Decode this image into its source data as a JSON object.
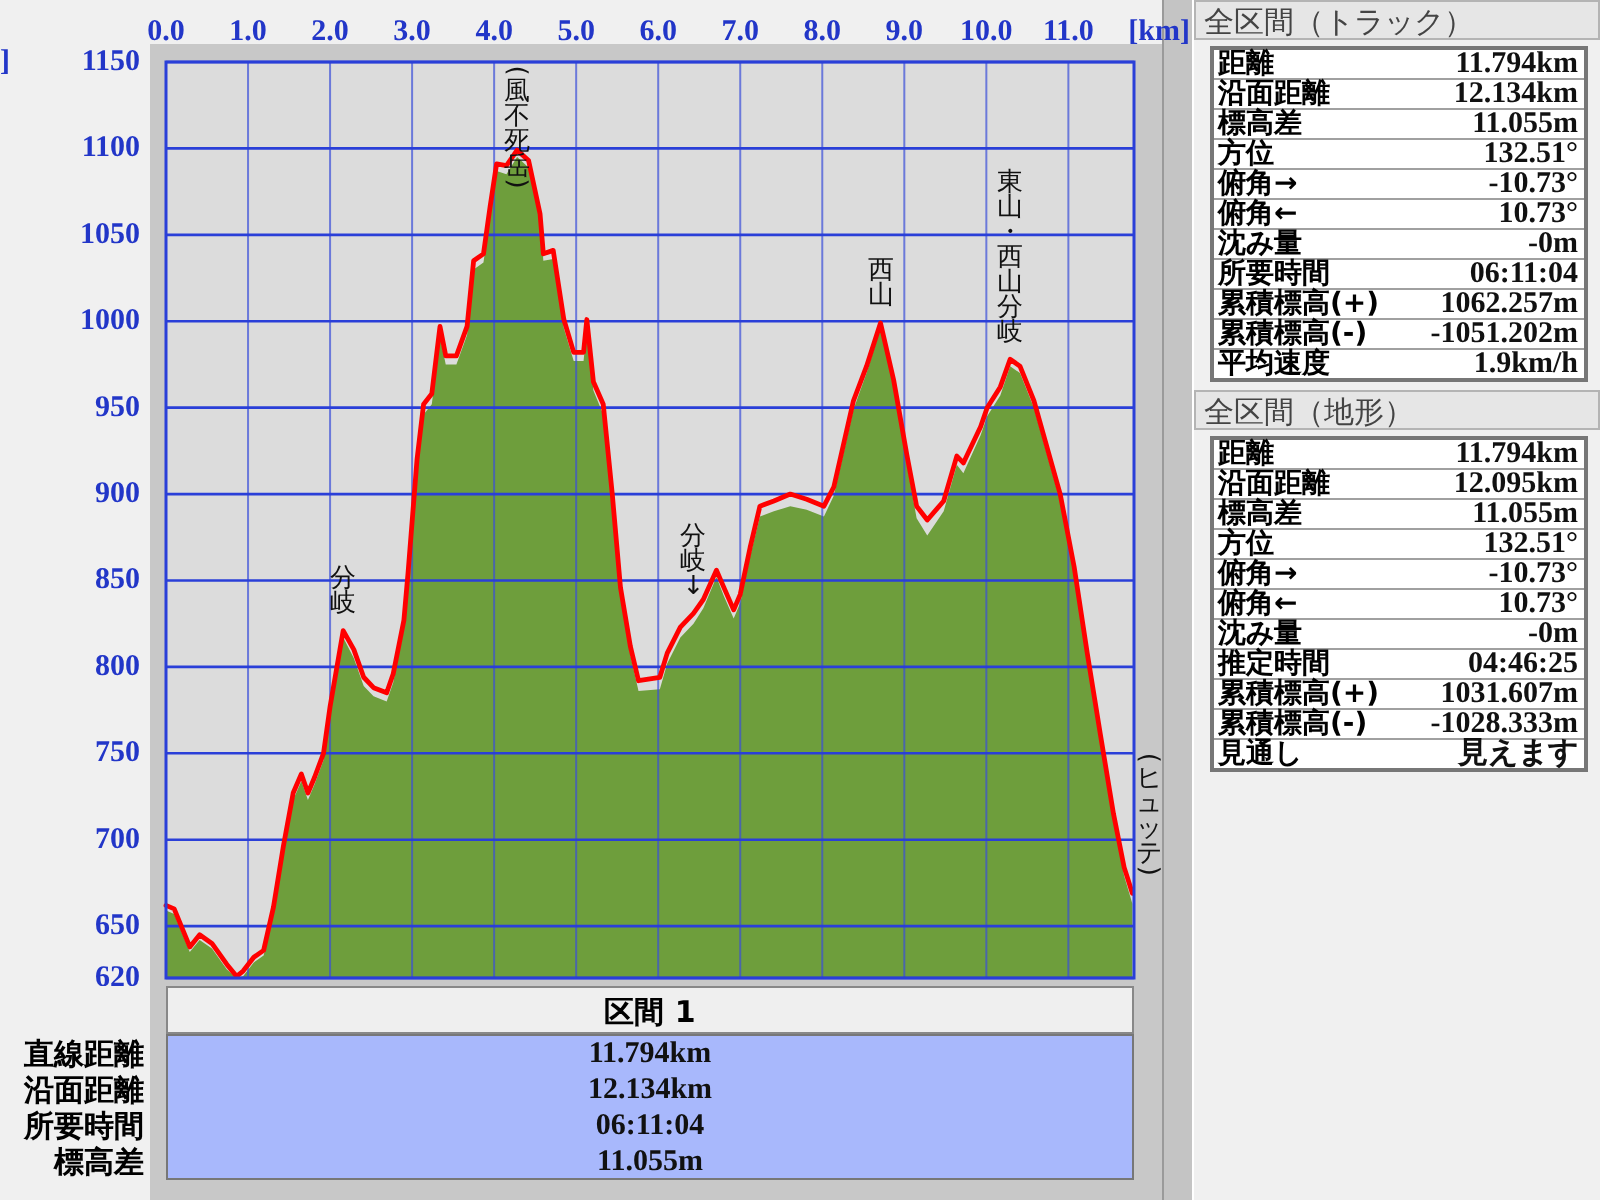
{
  "chart_data": [
    {
      "type": "area",
      "xlabel": "[km]",
      "ylabel": "]",
      "line_style": "solid",
      "x": [
        0,
        0.1,
        0.29,
        0.41,
        0.56,
        0.74,
        0.86,
        0.94,
        1.07,
        1.19,
        1.31,
        1.43,
        1.55,
        1.65,
        1.73,
        1.81,
        1.92,
        2.0,
        2.16,
        2.29,
        2.41,
        2.53,
        2.69,
        2.77,
        2.9,
        2.95,
        3.02,
        3.06,
        3.14,
        3.24,
        3.34,
        3.41,
        3.54,
        3.67,
        3.75,
        3.87,
        3.95,
        4.03,
        4.15,
        4.28,
        4.42,
        4.56,
        4.6,
        4.72,
        4.85,
        4.97,
        5.09,
        5.13,
        5.21,
        5.33,
        5.44,
        5.54,
        5.66,
        5.76,
        6.02,
        6.11,
        6.27,
        6.43,
        6.55,
        6.71,
        6.8,
        6.92,
        7.0,
        7.12,
        7.24,
        7.41,
        7.61,
        7.81,
        8.02,
        8.14,
        8.38,
        8.54,
        8.71,
        8.87,
        9.03,
        9.15,
        9.28,
        9.48,
        9.64,
        9.72,
        9.93,
        10.01,
        10.17,
        10.29,
        10.41,
        10.58,
        10.74,
        10.9,
        11.07,
        11.23,
        11.39,
        11.55,
        11.68,
        11.78
      ],
      "series": [
        {
          "type": "area",
          "color": "#6e9e3c",
          "values": [
            659,
            657,
            635,
            642,
            637,
            625,
            620,
            621,
            629,
            633,
            657,
            692,
            723,
            734,
            723,
            732,
            746,
            773,
            817,
            805,
            789,
            783,
            780,
            791,
            822,
            849,
            891,
            914,
            946,
            952,
            991,
            975,
            975,
            992,
            1030,
            1034,
            1061,
            1087,
            1085,
            1095,
            1089,
            1058,
            1035,
            1036,
            996,
            977,
            977,
            996,
            960,
            946,
            895,
            841,
            807,
            786,
            787,
            802,
            817,
            825,
            834,
            852,
            841,
            828,
            837,
            864,
            887,
            890,
            893,
            891,
            887,
            899,
            949,
            970,
            996,
            962,
            918,
            886,
            876,
            890,
            917,
            912,
            934,
            945,
            957,
            974,
            970,
            950,
            923,
            896,
            854,
            804,
            757,
            711,
            679,
            663
          ]
        },
        {
          "type": "line",
          "color": "#ff0000",
          "values": [
            662,
            660,
            638,
            645,
            640,
            628,
            621,
            624,
            632,
            636,
            661,
            696,
            727,
            738,
            727,
            736,
            750,
            777,
            821,
            810,
            794,
            788,
            785,
            796,
            827,
            854,
            896,
            920,
            952,
            958,
            997,
            980,
            980,
            997,
            1035,
            1039,
            1066,
            1091,
            1090,
            1099,
            1093,
            1062,
            1039,
            1041,
            1001,
            982,
            982,
            1001,
            965,
            952,
            900,
            846,
            812,
            792,
            794,
            808,
            823,
            831,
            839,
            856,
            846,
            833,
            842,
            869,
            893,
            896,
            900,
            897,
            893,
            904,
            954,
            974,
            999,
            966,
            923,
            893,
            885,
            896,
            922,
            918,
            939,
            950,
            962,
            978,
            974,
            954,
            927,
            900,
            858,
            808,
            761,
            715,
            684,
            669
          ]
        }
      ],
      "xlim": [
        0,
        11.8
      ],
      "xticks": [
        {
          "value": 0,
          "label": "0.0"
        },
        {
          "value": 1,
          "label": "1.0"
        },
        {
          "value": 2,
          "label": "2.0"
        },
        {
          "value": 3,
          "label": "3.0"
        },
        {
          "value": 4,
          "label": "4.0"
        },
        {
          "value": 5,
          "label": "5.0"
        },
        {
          "value": 6,
          "label": "6.0"
        },
        {
          "value": 7,
          "label": "7.0"
        },
        {
          "value": 8,
          "label": "8.0"
        },
        {
          "value": 9,
          "label": "9.0"
        },
        {
          "value": 10,
          "label": "10.0"
        },
        {
          "value": 11,
          "label": "11.0"
        }
      ],
      "ylim": [
        620,
        1150
      ],
      "yticks": [
        620,
        650,
        700,
        750,
        800,
        850,
        900,
        950,
        1000,
        1050,
        1100,
        1150
      ],
      "grid": true,
      "annotations": [
        {
          "text": "(風不死岳)",
          "x": 4.28,
          "y": 1099
        },
        {
          "text": "分岐",
          "x": 2.16,
          "y": 821
        },
        {
          "text": "分岐↓",
          "x": 6.43,
          "y": 831
        },
        {
          "text": "西山",
          "x": 8.71,
          "y": 999
        },
        {
          "text": "東山・西山分岐",
          "x": 10.29,
          "y": 978
        },
        {
          "text": "(ヒュッテ)",
          "x": 11.78,
          "y": 669
        }
      ]
    },
    {
      "type": "other",
      "title": "全区間（トラック）",
      "annotations": [
        "距離",
        "11.794km",
        "沿面距離",
        "12.134km",
        "標高差",
        "11.055m",
        "方位",
        "132.51°",
        "俯角→",
        "-10.73°",
        "俯角←",
        "10.73°",
        "沈み量",
        "-0m",
        "所要時間",
        "06:11:04",
        "累積標高(+)",
        "1062.257m",
        "累積標高(-)",
        "-1051.202m",
        "平均速度",
        "1.9km/h"
      ]
    },
    {
      "type": "other",
      "title": "全区間（地形）",
      "annotations": [
        "距離",
        "11.794km",
        "沿面距離",
        "12.095km",
        "標高差",
        "11.055m",
        "方位",
        "132.51°",
        "俯角→",
        "-10.73°",
        "俯角←",
        "10.73°",
        "沈み量",
        "-0m",
        "推定時間",
        "04:46:25",
        "累積標高(+)",
        "1031.607m",
        "累積標高(-)",
        "-1028.333m",
        "見通し",
        "見えます"
      ]
    },
    {
      "type": "other",
      "title": "区間 1",
      "annotations": [
        "直線距離",
        "11.794km",
        "沿面距離",
        "12.134km",
        "所要時間",
        "06:11:04",
        "標高差",
        "11.055m"
      ]
    }
  ]
}
